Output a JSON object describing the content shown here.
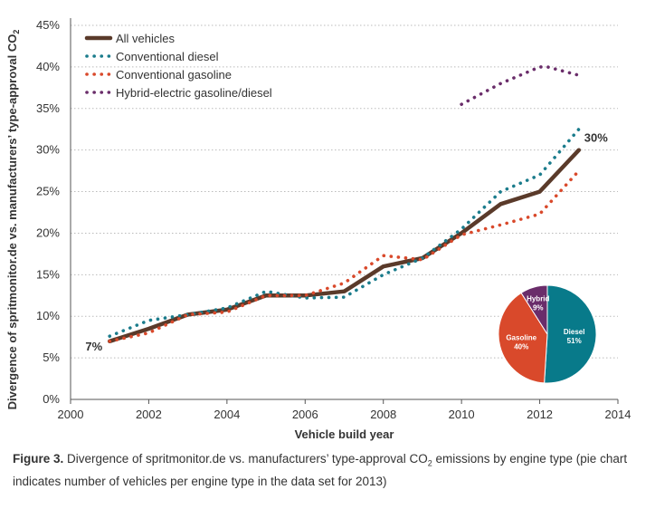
{
  "chart_data": [
    {
      "type": "line",
      "title": "",
      "xlabel": "Vehicle build year",
      "ylabel": "Divergence of spritmonitor.de vs. manufacturers’ type-approval CO",
      "ylabel_sub": "2",
      "xlim": [
        2000,
        2014
      ],
      "ylim": [
        0,
        45
      ],
      "xticks": [
        2000,
        2002,
        2004,
        2006,
        2008,
        2010,
        2012,
        2014
      ],
      "yticks": [
        0,
        5,
        10,
        15,
        20,
        25,
        30,
        35,
        40,
        45
      ],
      "ytick_labels": [
        "0%",
        "5%",
        "10%",
        "15%",
        "20%",
        "25%",
        "30%",
        "35%",
        "40%",
        "45%"
      ],
      "grid": "horizontal dotted",
      "legend_position": "top-left",
      "series": [
        {
          "name": "All vehicles",
          "color": "#5a3a2a",
          "style": "solid",
          "x": [
            2001,
            2002,
            2003,
            2004,
            2005,
            2006,
            2007,
            2008,
            2009,
            2010,
            2011,
            2012,
            2013
          ],
          "y": [
            7.0,
            8.5,
            10.2,
            10.8,
            12.5,
            12.5,
            13.0,
            16.0,
            17.0,
            20.0,
            23.5,
            25.0,
            30.0
          ]
        },
        {
          "name": "Conventional diesel",
          "color": "#1b7c8c",
          "style": "dotted",
          "x": [
            2001,
            2002,
            2003,
            2004,
            2005,
            2006,
            2007,
            2008,
            2009,
            2010,
            2011,
            2012,
            2013
          ],
          "y": [
            7.6,
            9.5,
            10.2,
            11.0,
            13.0,
            12.2,
            12.3,
            15.0,
            17.0,
            20.5,
            25.0,
            27.0,
            32.5
          ]
        },
        {
          "name": "Conventional gasoline",
          "color": "#d9492b",
          "style": "dotted",
          "x": [
            2001,
            2002,
            2003,
            2004,
            2005,
            2006,
            2007,
            2008,
            2009,
            2010,
            2011,
            2012,
            2013
          ],
          "y": [
            7.0,
            8.0,
            10.2,
            10.5,
            12.5,
            12.5,
            14.0,
            17.3,
            16.8,
            19.8,
            21.0,
            22.3,
            27.5
          ]
        },
        {
          "name": "Hybrid-electric gasoline/diesel",
          "color": "#6a2d6a",
          "style": "dotted",
          "x": [
            2010,
            2011,
            2012,
            2012.2,
            2013
          ],
          "y": [
            35.5,
            38.0,
            40.0,
            40.0,
            39.0
          ]
        }
      ],
      "annotations": [
        {
          "text": "7%",
          "x": 2001,
          "y": 7.0,
          "anchor": "left"
        },
        {
          "text": "30%",
          "x": 2013,
          "y": 30.0,
          "anchor": "right"
        }
      ]
    },
    {
      "type": "pie",
      "slices": [
        {
          "name": "Diesel",
          "value": 51,
          "label": "51%",
          "color": "#087a8a"
        },
        {
          "name": "Gasoline",
          "value": 40,
          "label": "40%",
          "color": "#d9492b"
        },
        {
          "name": "Hybrid",
          "value": 9,
          "label": "9%",
          "color": "#6a2d6a"
        }
      ]
    }
  ],
  "caption": {
    "prefix": "Figure 3.",
    "text_1": " Divergence of spritmonitor.de vs. manufacturers’ type-approval CO",
    "sub": "2",
    "text_2": " emissions by engine type (pie chart indicates number of vehicles per engine type in the data set for 2013)"
  },
  "colors": {
    "axis": "#555555",
    "grid": "#bbbbbb",
    "text": "#333333"
  }
}
